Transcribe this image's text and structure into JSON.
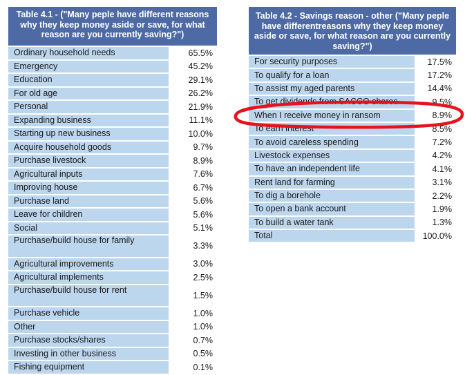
{
  "table1": {
    "title": "Table 4.1 - (\"Many peple have different reasons why they keep money aside or save, for what reason are you currently saving?\")",
    "rows": [
      {
        "label": "Ordinary household needs",
        "value": "65.5%"
      },
      {
        "label": "Emergency",
        "value": "45.2%"
      },
      {
        "label": "Education",
        "value": "29.1%"
      },
      {
        "label": "For old age",
        "value": "26.2%"
      },
      {
        "label": "Personal",
        "value": "21.9%"
      },
      {
        "label": "Expanding business",
        "value": "11.1%"
      },
      {
        "label": "Starting up new business",
        "value": "10.0%"
      },
      {
        "label": "Acquire household goods",
        "value": "9.7%"
      },
      {
        "label": "Purchase livestock",
        "value": "8.9%"
      },
      {
        "label": "Agricultural inputs",
        "value": "7.6%"
      },
      {
        "label": "Improving house",
        "value": "6.7%"
      },
      {
        "label": "Purchase land",
        "value": "5.6%"
      },
      {
        "label": "Leave for children",
        "value": "5.6%"
      },
      {
        "label": "Social",
        "value": "5.1%"
      },
      {
        "label": "Purchase/build house for family",
        "value": "3.3%",
        "tall": true
      },
      {
        "label": "Agricultural improvements",
        "value": "3.0%"
      },
      {
        "label": "Agricultural implements",
        "value": "2.5%"
      },
      {
        "label": "Purchase/build house for rent",
        "value": "1.5%",
        "tall": true
      },
      {
        "label": "Purchase vehicle",
        "value": "1.0%"
      },
      {
        "label": "Other",
        "value": "1.0%"
      },
      {
        "label": "Purchase stocks/shares",
        "value": "0.7%"
      },
      {
        "label": "Investing in other business",
        "value": "0.5%"
      },
      {
        "label": "Fishing equipment",
        "value": "0.1%"
      }
    ]
  },
  "table2": {
    "title": "Table 4.2 - Savings reason - other (\"Many peple have differentreasons why they keep money aside or save, for what reason are you currently saving?\")",
    "rows": [
      {
        "label": "For security purposes",
        "value": "17.5%"
      },
      {
        "label": "To qualify for a loan",
        "value": "17.2%"
      },
      {
        "label": "To assist my aged parents",
        "value": "14.4%"
      },
      {
        "label": "To get dividends from SACCO shares",
        "value": "9.5%"
      },
      {
        "label": "When I receive money in ransom",
        "value": "8.9%"
      },
      {
        "label": "To earn interest",
        "value": "8.5%"
      },
      {
        "label": "To avoid careless spending",
        "value": "7.2%"
      },
      {
        "label": "Livestock expenses",
        "value": "4.2%"
      },
      {
        "label": "To have an independent life",
        "value": "4.1%"
      },
      {
        "label": "Rent land for farming",
        "value": "3.1%"
      },
      {
        "label": "To dig a borehole",
        "value": "2.2%"
      },
      {
        "label": "To open a bank account",
        "value": "1.9%"
      },
      {
        "label": "To build a water tank",
        "value": "1.3%"
      },
      {
        "label": "Total",
        "value": "100.0%"
      }
    ]
  },
  "colors": {
    "header": "#4e6aa5",
    "label_cell": "#bcd6ee",
    "annotation": "#e8121c"
  }
}
